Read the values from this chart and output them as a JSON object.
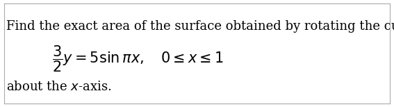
{
  "line1": "Find the exact area of the surface obtained by rotating the curve:",
  "equation": "$\\dfrac{3}{2}y = 5\\sin \\pi x, \\quad 0 \\leq x \\leq 1$",
  "line3": "about the $x$-axis.",
  "bg_color": "#ffffff",
  "border_color": "#aaaaaa",
  "text_color": "#000000",
  "font_size_text": 13,
  "font_size_eq": 15,
  "fig_width": 5.67,
  "fig_height": 1.54,
  "dpi": 100
}
